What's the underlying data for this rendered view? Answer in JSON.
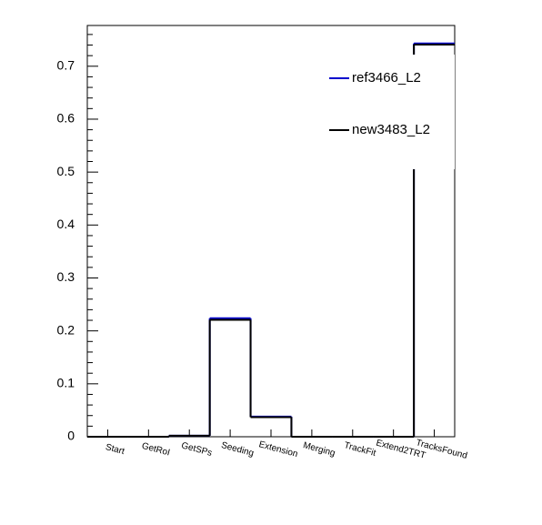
{
  "chart_data": {
    "type": "step",
    "categories": [
      "Start",
      "GetRoI",
      "GetSPs",
      "Seeding",
      "Extension",
      "Merging",
      "TrackFit",
      "Extend2TRT",
      "TracksFound"
    ],
    "series": [
      {
        "name": "ref3466_L2",
        "color": "#0000cc",
        "values": [
          0,
          0,
          0.002,
          0.224,
          0.038,
          0,
          0,
          0,
          0.743
        ]
      },
      {
        "name": "new3483_L2",
        "color": "#000000",
        "values": [
          0,
          0,
          0.002,
          0.221,
          0.037,
          0,
          0,
          0,
          0.741
        ]
      }
    ],
    "ylim": [
      0,
      0.777
    ],
    "yticks": [
      0,
      0.1,
      0.2,
      0.3,
      0.4,
      0.5,
      0.6,
      0.7
    ]
  }
}
